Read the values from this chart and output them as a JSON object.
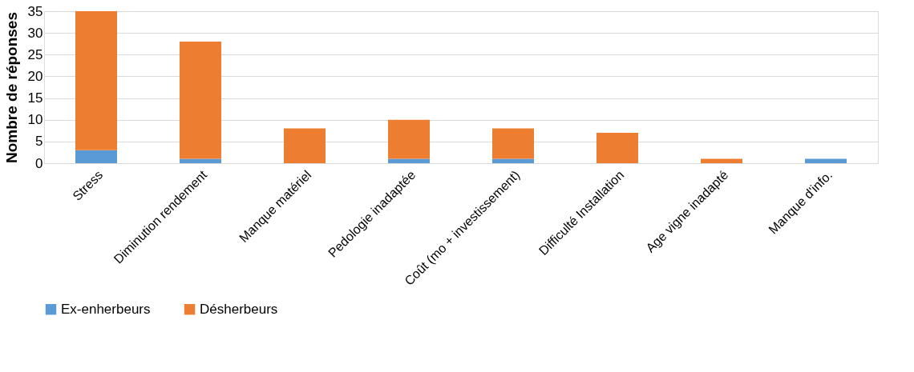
{
  "chart_data": {
    "type": "bar",
    "stacked": true,
    "ylabel": "Nombre de réponses",
    "categories": [
      "Stress",
      "Diminution rendement",
      "Manque matériel",
      "Pedologie inadaptée",
      "Coût (mo + investissement)",
      "Difficulté Installation",
      "Age vigne inadapté",
      "Manque d'info."
    ],
    "series": [
      {
        "name": "Ex-enherbeurs",
        "color": "#5b9bd5",
        "values": [
          3,
          1,
          0,
          1,
          1,
          0,
          0,
          1
        ]
      },
      {
        "name": "Désherbeurs",
        "color": "#ed7d31",
        "values": [
          32,
          27,
          8,
          9,
          7,
          7,
          1,
          0
        ]
      }
    ],
    "ylim": [
      0,
      35
    ],
    "yticks": [
      0,
      5,
      10,
      15,
      20,
      25,
      30,
      35
    ],
    "grid": "y",
    "legend": "bottom"
  }
}
